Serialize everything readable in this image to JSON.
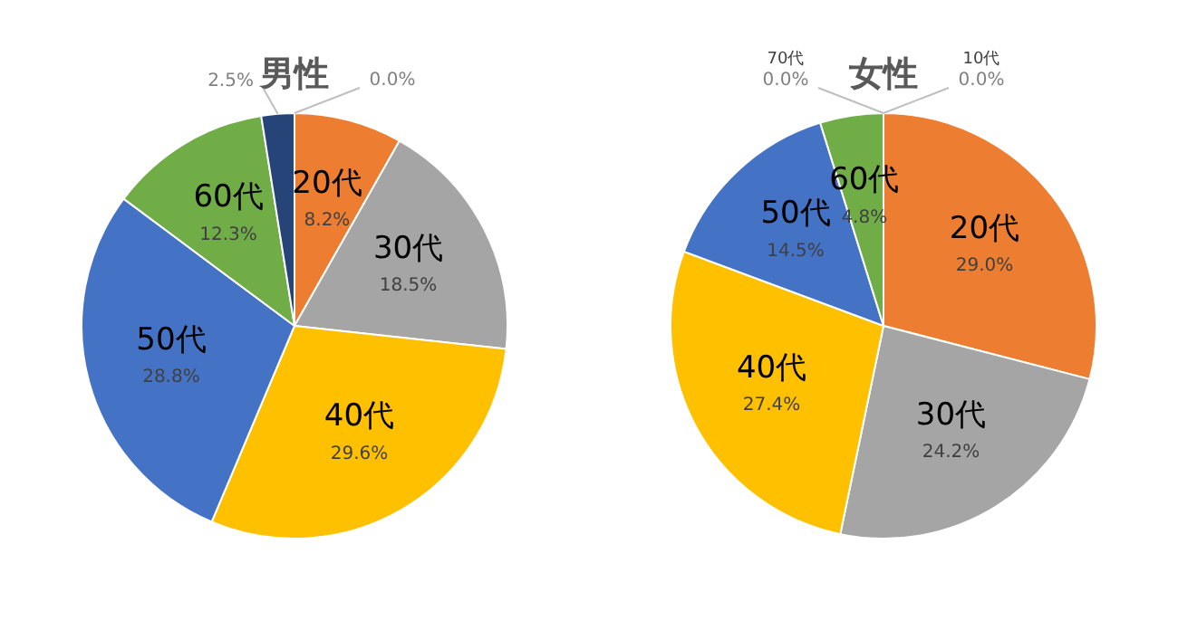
{
  "chart_data": [
    {
      "type": "pie",
      "title": "男性",
      "categories": [
        null,
        "20代",
        "30代",
        "40代",
        "50代",
        "60代",
        null
      ],
      "values": [
        0.0,
        8.2,
        18.5,
        29.6,
        28.8,
        12.3,
        2.5
      ],
      "value_labels": [
        "0.0%",
        "8.2%",
        "18.5%",
        "29.6%",
        "28.8%",
        "12.3%",
        "2.5%"
      ],
      "colors": [
        "#5b9bd5",
        "#ed7d31",
        "#a5a5a5",
        "#ffc000",
        "#4472c4",
        "#70ad47",
        "#264478"
      ],
      "legend": false
    },
    {
      "type": "pie",
      "title": "女性",
      "categories": [
        "10代",
        "20代",
        "30代",
        "40代",
        "50代",
        "60代",
        "70代"
      ],
      "values": [
        0.0,
        29.0,
        24.2,
        27.4,
        14.5,
        4.8,
        0.0
      ],
      "value_labels": [
        "0.0%",
        "29.0%",
        "24.2%",
        "27.4%",
        "14.5%",
        "4.8%",
        "0.0%"
      ],
      "colors": [
        "#5b9bd5",
        "#ed7d31",
        "#a5a5a5",
        "#ffc000",
        "#4472c4",
        "#70ad47",
        "#264478"
      ],
      "legend": false
    }
  ]
}
